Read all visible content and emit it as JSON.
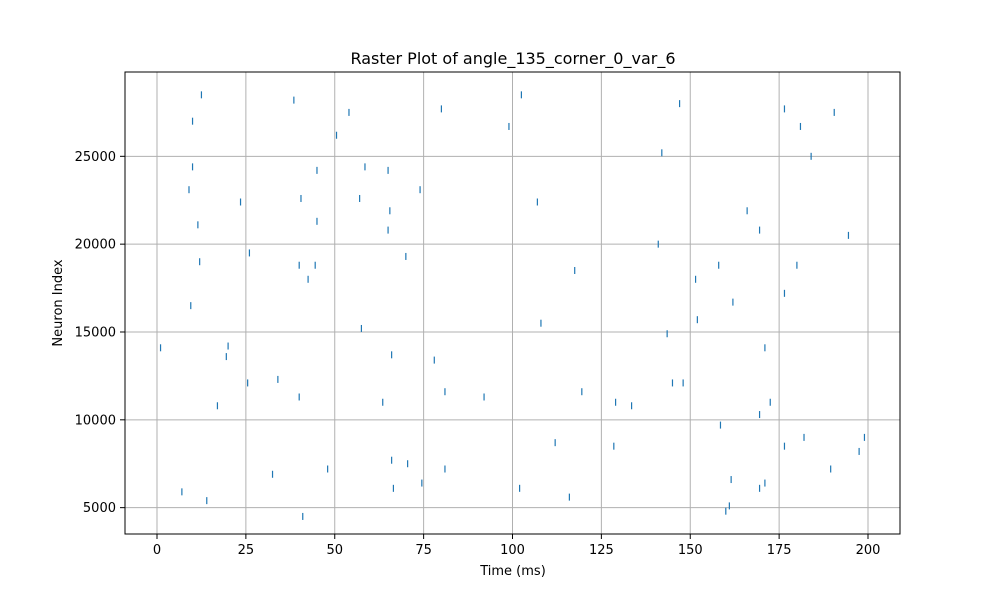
{
  "chart_data": {
    "type": "scatter",
    "marker": "vertical-line",
    "title": "Raster Plot of angle_135_corner_0_var_6",
    "xlabel": "Time (ms)",
    "ylabel": "Neuron Index",
    "xlim": [
      -9,
      209
    ],
    "ylim": [
      3500,
      29800
    ],
    "xticks": [
      0,
      25,
      50,
      75,
      100,
      125,
      150,
      175,
      200
    ],
    "yticks": [
      5000,
      10000,
      15000,
      20000,
      25000
    ],
    "grid": true,
    "color": "#1f77b4",
    "spikes": [
      {
        "t": 1,
        "n": 14100
      },
      {
        "t": 7,
        "n": 5900
      },
      {
        "t": 9,
        "n": 23100
      },
      {
        "t": 9.5,
        "n": 16500
      },
      {
        "t": 10,
        "n": 27000
      },
      {
        "t": 10,
        "n": 24400
      },
      {
        "t": 11.5,
        "n": 21100
      },
      {
        "t": 12,
        "n": 19000
      },
      {
        "t": 12.5,
        "n": 28500
      },
      {
        "t": 14,
        "n": 5400
      },
      {
        "t": 17,
        "n": 10800
      },
      {
        "t": 19.5,
        "n": 13600
      },
      {
        "t": 20,
        "n": 14200
      },
      {
        "t": 23.5,
        "n": 22400
      },
      {
        "t": 25.5,
        "n": 12100
      },
      {
        "t": 26,
        "n": 19500
      },
      {
        "t": 32.5,
        "n": 6900
      },
      {
        "t": 34,
        "n": 12300
      },
      {
        "t": 38.5,
        "n": 28200
      },
      {
        "t": 40,
        "n": 18800
      },
      {
        "t": 40,
        "n": 11300
      },
      {
        "t": 40.5,
        "n": 22600
      },
      {
        "t": 41,
        "n": 4500
      },
      {
        "t": 42.5,
        "n": 18000
      },
      {
        "t": 45,
        "n": 24200
      },
      {
        "t": 45,
        "n": 21300
      },
      {
        "t": 44.5,
        "n": 18800
      },
      {
        "t": 48,
        "n": 7200
      },
      {
        "t": 50.5,
        "n": 26200
      },
      {
        "t": 54,
        "n": 27500
      },
      {
        "t": 57,
        "n": 22600
      },
      {
        "t": 57.5,
        "n": 15200
      },
      {
        "t": 58.5,
        "n": 24400
      },
      {
        "t": 63.5,
        "n": 11000
      },
      {
        "t": 65,
        "n": 24200
      },
      {
        "t": 65.5,
        "n": 21900
      },
      {
        "t": 65,
        "n": 20800
      },
      {
        "t": 66,
        "n": 13700
      },
      {
        "t": 66,
        "n": 7700
      },
      {
        "t": 66.5,
        "n": 6100
      },
      {
        "t": 70,
        "n": 19300
      },
      {
        "t": 70.5,
        "n": 7500
      },
      {
        "t": 74,
        "n": 23100
      },
      {
        "t": 74.5,
        "n": 6400
      },
      {
        "t": 78,
        "n": 13400
      },
      {
        "t": 80,
        "n": 27700
      },
      {
        "t": 81,
        "n": 11600
      },
      {
        "t": 81,
        "n": 7200
      },
      {
        "t": 92,
        "n": 11300
      },
      {
        "t": 99,
        "n": 26700
      },
      {
        "t": 102.5,
        "n": 28500
      },
      {
        "t": 102,
        "n": 6100
      },
      {
        "t": 107,
        "n": 22400
      },
      {
        "t": 108,
        "n": 15500
      },
      {
        "t": 112,
        "n": 8700
      },
      {
        "t": 116,
        "n": 5600
      },
      {
        "t": 117.5,
        "n": 18500
      },
      {
        "t": 119.5,
        "n": 11600
      },
      {
        "t": 128.5,
        "n": 8500
      },
      {
        "t": 129,
        "n": 11000
      },
      {
        "t": 133.5,
        "n": 10800
      },
      {
        "t": 141,
        "n": 20000
      },
      {
        "t": 142,
        "n": 25200
      },
      {
        "t": 143.5,
        "n": 14900
      },
      {
        "t": 145,
        "n": 12100
      },
      {
        "t": 147,
        "n": 28000
      },
      {
        "t": 148,
        "n": 12100
      },
      {
        "t": 151.5,
        "n": 18000
      },
      {
        "t": 152,
        "n": 15700
      },
      {
        "t": 158,
        "n": 18800
      },
      {
        "t": 158.5,
        "n": 9700
      },
      {
        "t": 160,
        "n": 4800
      },
      {
        "t": 161,
        "n": 5100
      },
      {
        "t": 161.5,
        "n": 6600
      },
      {
        "t": 162,
        "n": 16700
      },
      {
        "t": 166,
        "n": 21900
      },
      {
        "t": 169.5,
        "n": 20800
      },
      {
        "t": 169.5,
        "n": 10300
      },
      {
        "t": 169.5,
        "n": 6100
      },
      {
        "t": 171,
        "n": 14100
      },
      {
        "t": 171,
        "n": 6400
      },
      {
        "t": 172.5,
        "n": 11000
      },
      {
        "t": 176.5,
        "n": 27700
      },
      {
        "t": 176.5,
        "n": 17200
      },
      {
        "t": 176.5,
        "n": 8500
      },
      {
        "t": 180,
        "n": 18800
      },
      {
        "t": 181,
        "n": 26700
      },
      {
        "t": 182,
        "n": 9000
      },
      {
        "t": 184,
        "n": 25000
      },
      {
        "t": 189.5,
        "n": 7200
      },
      {
        "t": 190.5,
        "n": 27500
      },
      {
        "t": 194.5,
        "n": 20500
      },
      {
        "t": 197.5,
        "n": 8200
      },
      {
        "t": 199,
        "n": 9000
      }
    ]
  }
}
